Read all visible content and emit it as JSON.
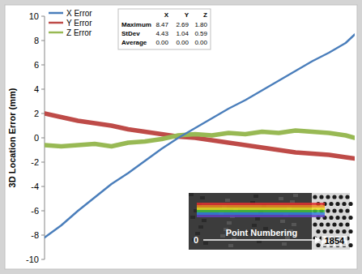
{
  "chart_data": {
    "type": "line",
    "y_label": "3D Location Error (mm)",
    "x": [
      0,
      100,
      200,
      300,
      400,
      500,
      600,
      700,
      800,
      900,
      1000,
      1100,
      1200,
      1300,
      1400,
      1500,
      1600,
      1700,
      1800,
      1854
    ],
    "series": [
      {
        "name": "X Error",
        "color": "#4a7ebb",
        "values": [
          -8.2,
          -7.2,
          -6.0,
          -4.9,
          -3.8,
          -2.9,
          -1.9,
          -0.9,
          0.0,
          0.8,
          1.6,
          2.4,
          3.1,
          3.9,
          4.7,
          5.5,
          6.3,
          7.0,
          7.8,
          8.5
        ]
      },
      {
        "name": "Y Error",
        "color": "#be4b48",
        "values": [
          2.0,
          1.7,
          1.4,
          1.2,
          1.0,
          0.7,
          0.5,
          0.3,
          0.1,
          0.0,
          -0.2,
          -0.4,
          -0.6,
          -0.8,
          -1.0,
          -1.2,
          -1.3,
          -1.4,
          -1.6,
          -1.7
        ]
      },
      {
        "name": "Z Error",
        "color": "#98b954",
        "values": [
          -0.6,
          -0.7,
          -0.6,
          -0.5,
          -0.7,
          -0.4,
          -0.3,
          -0.1,
          0.2,
          0.3,
          0.2,
          0.4,
          0.3,
          0.5,
          0.4,
          0.6,
          0.5,
          0.4,
          0.2,
          0.0
        ]
      }
    ],
    "xlim": [
      0,
      1854
    ],
    "ylim": [
      -10,
      10
    ],
    "yticks": [
      -10,
      -8,
      -6,
      -4,
      -2,
      0,
      2,
      4,
      6,
      8,
      10
    ],
    "tick_labels": "y",
    "grid": false,
    "legend": "top-left",
    "stats_table": {
      "columns": [
        "X",
        "Y",
        "Z"
      ],
      "rows": [
        {
          "label": "Maximum",
          "values": [
            "8.47",
            "2.69",
            "1.80"
          ]
        },
        {
          "label": "StDev",
          "values": [
            "4.43",
            "1.04",
            "0.59"
          ]
        },
        {
          "label": "Average",
          "values": [
            "0.00",
            "0.00",
            "0.00"
          ]
        }
      ]
    },
    "annotations": [
      "0",
      "Point Numbering",
      "1854"
    ]
  }
}
